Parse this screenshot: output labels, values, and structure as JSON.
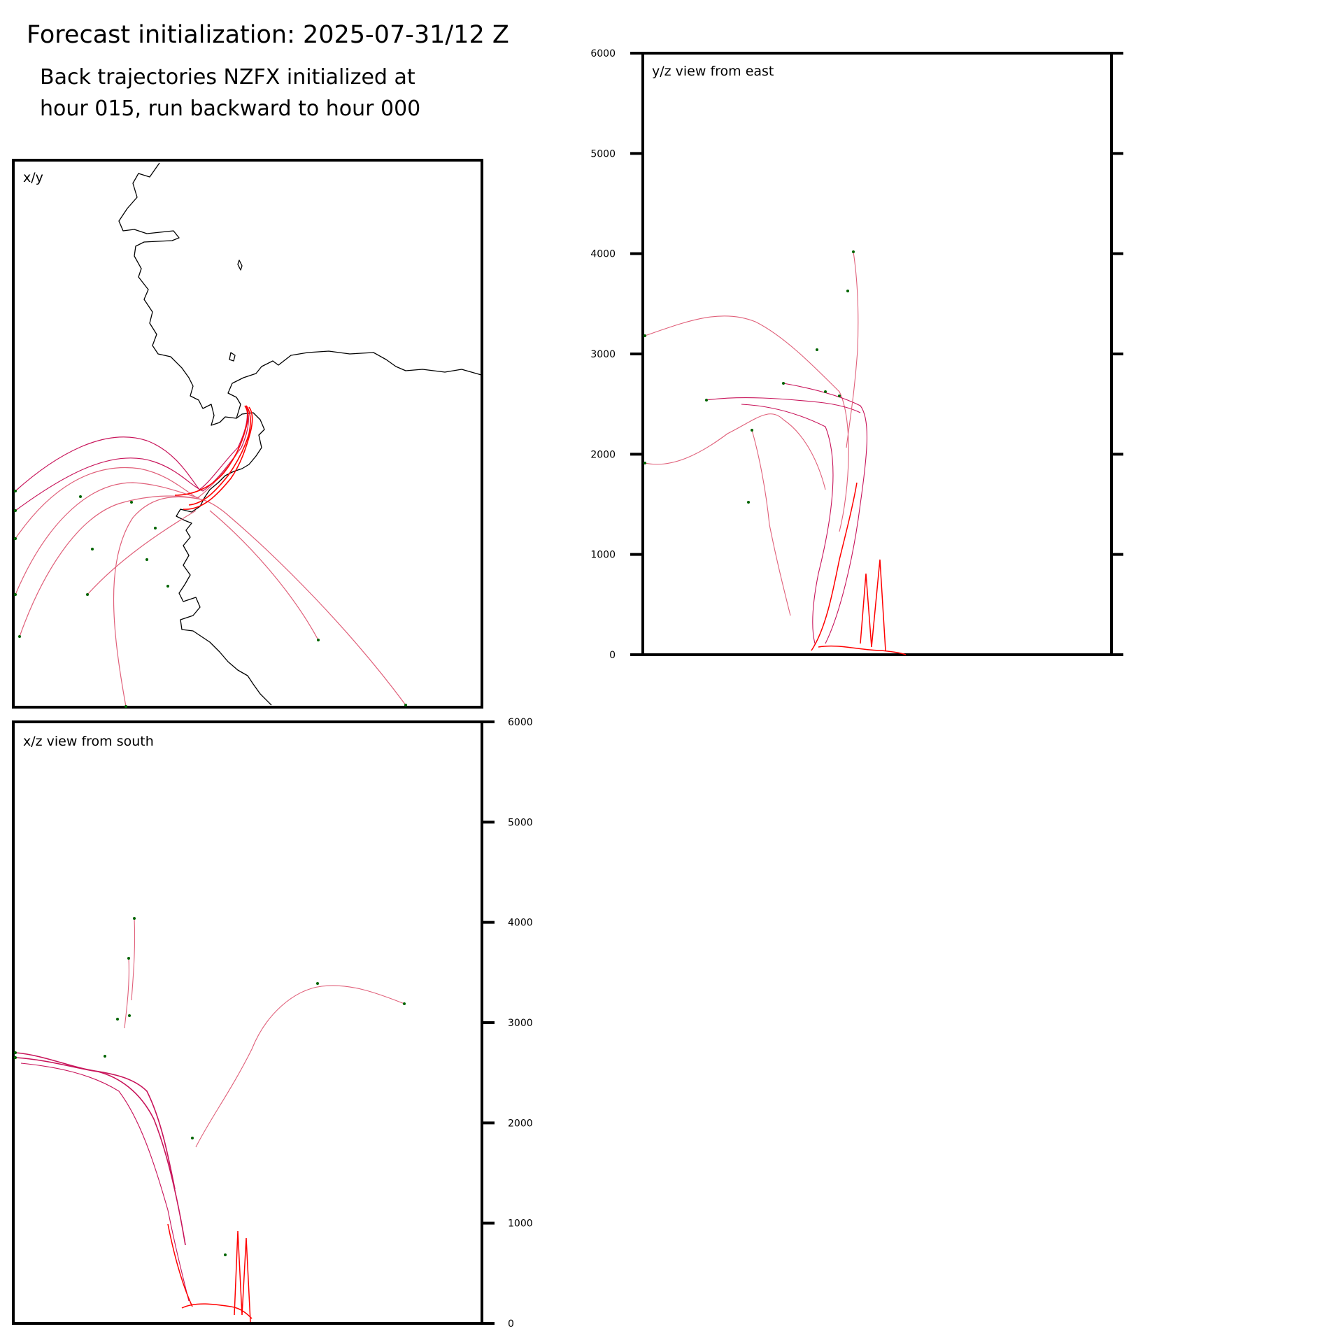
{
  "title": "Forecast initialization: 2025-07-31/12 Z",
  "subtitle_lines": [
    "Back trajectories NZFX initialized at",
    "hour 015, run backward to hour 000"
  ],
  "colors": {
    "trajectory_late": "#ff0000",
    "trajectory_early": "#c8145a",
    "trajectory_faint": "#e0607a",
    "endpoint_marker": "#006400",
    "coastline": "#000000",
    "axes": "#000000"
  },
  "chart_data": [
    {
      "type": "line",
      "panel": "xy",
      "label": "x/y",
      "xlabel": "",
      "ylabel": "",
      "description_of_marks": "map view; trajectories converge at release point near coast",
      "series": []
    },
    {
      "type": "line",
      "panel": "yz",
      "label": "y/z view from east",
      "ylim": [
        0,
        6000
      ],
      "yticks": [
        "0",
        "1000",
        "2000",
        "3000",
        "4000",
        "5000",
        "6000"
      ],
      "grid": false,
      "series": []
    },
    {
      "type": "line",
      "panel": "xz",
      "label": "x/z view from south",
      "ylim": [
        0,
        6000
      ],
      "yticks": [
        "0",
        "1000",
        "2000",
        "3000",
        "4000",
        "5000",
        "6000"
      ],
      "grid": false,
      "series": []
    }
  ]
}
